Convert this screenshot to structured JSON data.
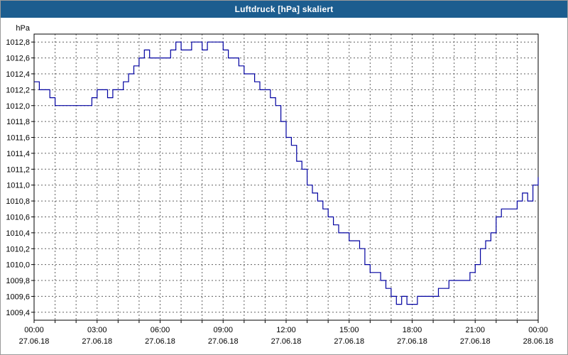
{
  "window": {
    "title": "Luftdruck [hPa] skaliert"
  },
  "colors": {
    "title_bar": "#1c5d8f",
    "line": "#0000a0",
    "grid": "#606060",
    "axis": "#000000",
    "plot_bg": "#ffffff",
    "label": "#000000"
  },
  "chart_data": {
    "type": "line",
    "title": "Luftdruck [hPa] skaliert",
    "xlabel": "",
    "ylabel": "hPa",
    "unit_label": "hPa",
    "decimal_separator": ",",
    "grid": "dashed",
    "legend": "none",
    "ylim": [
      1009.3,
      1012.9
    ],
    "y_tick_min": 1009.4,
    "y_tick_max": 1012.8,
    "y_tick_step": 0.2,
    "x_hours_span": 24,
    "x_grid_every_hours": 1,
    "x_ticks": [
      {
        "hour": 0,
        "time": "00:00",
        "date": "27.06.18"
      },
      {
        "hour": 3,
        "time": "03:00",
        "date": "27.06.18"
      },
      {
        "hour": 6,
        "time": "06:00",
        "date": "27.06.18"
      },
      {
        "hour": 9,
        "time": "09:00",
        "date": "27.06.18"
      },
      {
        "hour": 12,
        "time": "12:00",
        "date": "27.06.18"
      },
      {
        "hour": 15,
        "time": "15:00",
        "date": "27.06.18"
      },
      {
        "hour": 18,
        "time": "18:00",
        "date": "27.06.18"
      },
      {
        "hour": 21,
        "time": "21:00",
        "date": "27.06.18"
      },
      {
        "hour": 24,
        "time": "00:00",
        "date": "28.06.18"
      }
    ],
    "series": [
      {
        "name": "Luftdruck",
        "color": "#0000a0",
        "step": "after",
        "points": [
          [
            0.0,
            1012.3
          ],
          [
            0.25,
            1012.2
          ],
          [
            0.5,
            1012.2
          ],
          [
            0.75,
            1012.1
          ],
          [
            1.0,
            1012.0
          ],
          [
            1.25,
            1012.0
          ],
          [
            1.5,
            1012.0
          ],
          [
            1.75,
            1012.0
          ],
          [
            2.0,
            1012.0
          ],
          [
            2.25,
            1012.0
          ],
          [
            2.5,
            1012.0
          ],
          [
            2.75,
            1012.1
          ],
          [
            3.0,
            1012.2
          ],
          [
            3.25,
            1012.2
          ],
          [
            3.5,
            1012.1
          ],
          [
            3.75,
            1012.2
          ],
          [
            4.0,
            1012.2
          ],
          [
            4.25,
            1012.3
          ],
          [
            4.5,
            1012.4
          ],
          [
            4.75,
            1012.5
          ],
          [
            5.0,
            1012.6
          ],
          [
            5.25,
            1012.7
          ],
          [
            5.5,
            1012.6
          ],
          [
            5.75,
            1012.6
          ],
          [
            6.0,
            1012.6
          ],
          [
            6.25,
            1012.6
          ],
          [
            6.5,
            1012.7
          ],
          [
            6.75,
            1012.8
          ],
          [
            7.0,
            1012.7
          ],
          [
            7.25,
            1012.7
          ],
          [
            7.5,
            1012.8
          ],
          [
            7.75,
            1012.8
          ],
          [
            8.0,
            1012.7
          ],
          [
            8.25,
            1012.8
          ],
          [
            8.5,
            1012.8
          ],
          [
            8.75,
            1012.8
          ],
          [
            9.0,
            1012.7
          ],
          [
            9.25,
            1012.6
          ],
          [
            9.5,
            1012.6
          ],
          [
            9.75,
            1012.5
          ],
          [
            10.0,
            1012.4
          ],
          [
            10.25,
            1012.4
          ],
          [
            10.5,
            1012.3
          ],
          [
            10.75,
            1012.2
          ],
          [
            11.0,
            1012.2
          ],
          [
            11.25,
            1012.1
          ],
          [
            11.5,
            1012.0
          ],
          [
            11.75,
            1011.8
          ],
          [
            12.0,
            1011.6
          ],
          [
            12.25,
            1011.5
          ],
          [
            12.5,
            1011.3
          ],
          [
            12.75,
            1011.2
          ],
          [
            13.0,
            1011.0
          ],
          [
            13.25,
            1010.9
          ],
          [
            13.5,
            1010.8
          ],
          [
            13.75,
            1010.7
          ],
          [
            14.0,
            1010.6
          ],
          [
            14.25,
            1010.5
          ],
          [
            14.5,
            1010.4
          ],
          [
            14.75,
            1010.4
          ],
          [
            15.0,
            1010.3
          ],
          [
            15.25,
            1010.3
          ],
          [
            15.5,
            1010.2
          ],
          [
            15.75,
            1010.0
          ],
          [
            16.0,
            1009.9
          ],
          [
            16.25,
            1009.9
          ],
          [
            16.5,
            1009.8
          ],
          [
            16.75,
            1009.7
          ],
          [
            17.0,
            1009.6
          ],
          [
            17.25,
            1009.5
          ],
          [
            17.5,
            1009.6
          ],
          [
            17.75,
            1009.5
          ],
          [
            18.0,
            1009.5
          ],
          [
            18.25,
            1009.6
          ],
          [
            18.5,
            1009.6
          ],
          [
            18.75,
            1009.6
          ],
          [
            19.0,
            1009.6
          ],
          [
            19.25,
            1009.7
          ],
          [
            19.5,
            1009.7
          ],
          [
            19.75,
            1009.8
          ],
          [
            20.0,
            1009.8
          ],
          [
            20.25,
            1009.8
          ],
          [
            20.5,
            1009.8
          ],
          [
            20.75,
            1009.9
          ],
          [
            21.0,
            1010.0
          ],
          [
            21.25,
            1010.2
          ],
          [
            21.5,
            1010.3
          ],
          [
            21.75,
            1010.4
          ],
          [
            22.0,
            1010.6
          ],
          [
            22.25,
            1010.7
          ],
          [
            22.5,
            1010.7
          ],
          [
            22.75,
            1010.7
          ],
          [
            23.0,
            1010.8
          ],
          [
            23.25,
            1010.9
          ],
          [
            23.5,
            1010.8
          ],
          [
            23.75,
            1011.0
          ],
          [
            24.0,
            1011.1
          ]
        ]
      }
    ]
  }
}
